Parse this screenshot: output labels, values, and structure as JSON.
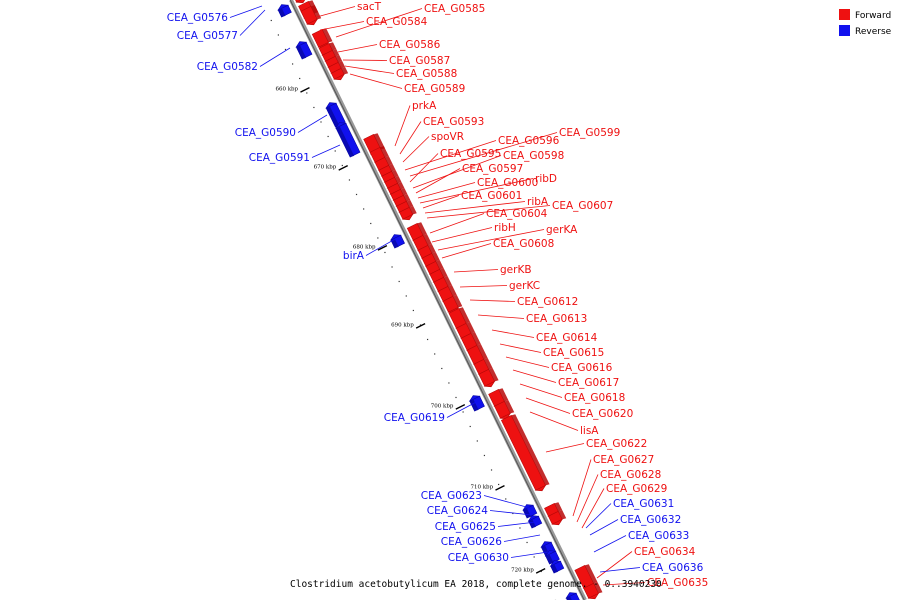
{
  "legend": [
    {
      "label": "Forward",
      "color": "#ee1111"
    },
    {
      "label": "Reverse",
      "color": "#1111ee"
    }
  ],
  "caption": "Clostridium acetobutylicum EA 2018, complete genome. - 0..3940230",
  "colors": {
    "forward": "#ee1111",
    "forward_dark": "#b80808",
    "reverse": "#1111ee",
    "reverse_dark": "#0808a8",
    "backbone": "#999999"
  },
  "ticks": [
    "660 kbp",
    "670 kbp",
    "680 kbp",
    "690 kbp",
    "700 kbp",
    "710 kbp",
    "720 kbp"
  ],
  "reverse_genes": [
    "CEA_G0576",
    "CEA_G0577",
    "CEA_G0582",
    "CEA_G0590",
    "CEA_G0591",
    "birA",
    "CEA_G0619",
    "CEA_G0623",
    "CEA_G0624",
    "CEA_G0625",
    "CEA_G0626",
    "CEA_G0630",
    "CEA_G0631",
    "CEA_G0632",
    "CEA_G0633",
    "CEA_G0636"
  ],
  "forward_genes": [
    "sacT",
    "CEA_G0584",
    "CEA_G0585",
    "CEA_G0586",
    "CEA_G0587",
    "CEA_G0588",
    "CEA_G0589",
    "prkA",
    "CEA_G0593",
    "spoVR",
    "CEA_G0596",
    "CEA_G0599",
    "CEA_G0595",
    "CEA_G0598",
    "CEA_G0597",
    "CEA_G0600",
    "ribD",
    "CEA_G0601",
    "ribA",
    "CEA_G0607",
    "CEA_G0604",
    "ribH",
    "gerKA",
    "CEA_G0608",
    "gerKB",
    "gerKC",
    "CEA_G0612",
    "CEA_G0613",
    "CEA_G0614",
    "CEA_G0615",
    "CEA_G0616",
    "CEA_G0617",
    "CEA_G0618",
    "CEA_G0620",
    "lisA",
    "CEA_G0622",
    "CEA_G0627",
    "CEA_G0628",
    "CEA_G0629",
    "CEA_G0634",
    "CEA_G0635"
  ]
}
